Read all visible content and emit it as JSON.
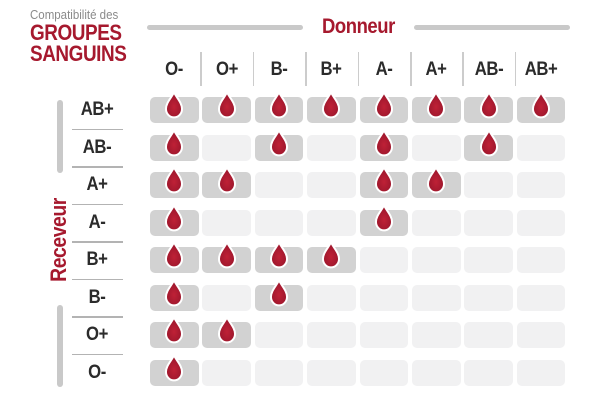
{
  "title": {
    "eyebrow": "Compatibilité des",
    "line1": "GROUPES",
    "line2": "SANGUINS"
  },
  "axes": {
    "donor_label": "Donneur",
    "receiver_label": "Receveur"
  },
  "chart_data": {
    "type": "heatmap",
    "title": "Compatibilité des GROUPES SANGUINS",
    "xlabel": "Donneur",
    "ylabel": "Receveur",
    "x_categories": [
      "O-",
      "O+",
      "B-",
      "B+",
      "A-",
      "A+",
      "AB-",
      "AB+"
    ],
    "y_categories": [
      "AB+",
      "AB-",
      "A+",
      "A-",
      "B+",
      "B-",
      "O+",
      "O-"
    ],
    "values": [
      [
        1,
        1,
        1,
        1,
        1,
        1,
        1,
        1
      ],
      [
        1,
        0,
        1,
        0,
        1,
        0,
        1,
        0
      ],
      [
        1,
        1,
        0,
        0,
        1,
        1,
        0,
        0
      ],
      [
        1,
        0,
        0,
        0,
        1,
        0,
        0,
        0
      ],
      [
        1,
        1,
        1,
        1,
        0,
        0,
        0,
        0
      ],
      [
        1,
        0,
        1,
        0,
        0,
        0,
        0,
        0
      ],
      [
        1,
        1,
        0,
        0,
        0,
        0,
        0,
        0
      ],
      [
        1,
        0,
        0,
        0,
        0,
        0,
        0,
        0
      ]
    ],
    "value_encoding": {
      "1": "compatible (blood drop shown on dark grey cell)",
      "0": "not compatible (empty light grey cell)"
    },
    "legend_position": "none",
    "grid": false
  },
  "icons": {
    "drop": "blood-drop-icon"
  },
  "colors": {
    "accent_red": "#a6192e",
    "drop_red_center": "#bf2136",
    "drop_red_edge": "#94142a",
    "cell_filled": "#d2d2d2",
    "cell_empty": "#f1f1f2",
    "line_gray": "#c9c9c9",
    "separator_gray": "#b3b3b3",
    "header_sep_gray": "#cccccc",
    "text_dark": "#2b2b2b",
    "text_gray": "#8a8a8a"
  }
}
